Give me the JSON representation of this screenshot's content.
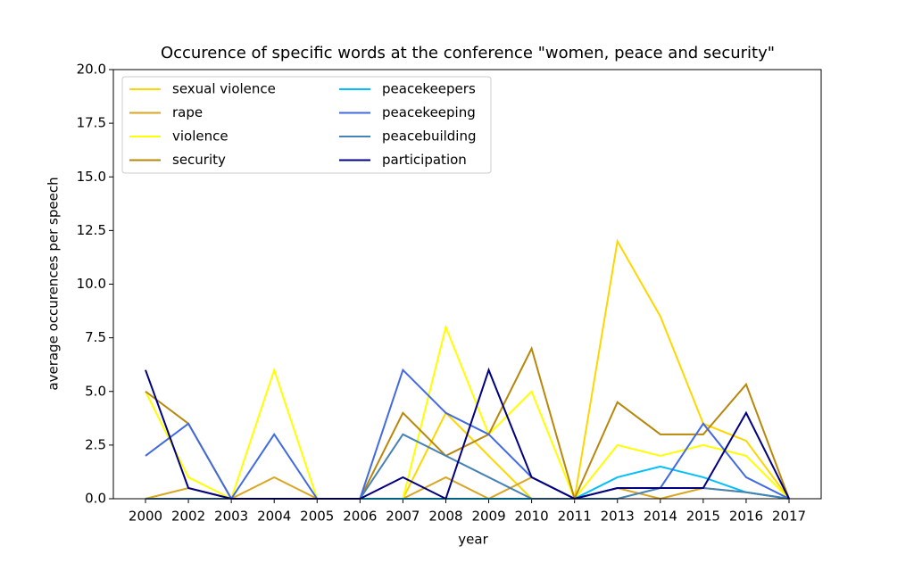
{
  "chart_data": {
    "type": "line",
    "title": "Occurence of specific words at the conference \"women, peace and security\"",
    "xlabel": "year",
    "ylabel": "average occurences per speech",
    "categories": [
      "2000",
      "2002",
      "2003",
      "2004",
      "2005",
      "2006",
      "2007",
      "2008",
      "2009",
      "2010",
      "2011",
      "2013",
      "2014",
      "2015",
      "2016",
      "2017"
    ],
    "ylim": [
      0,
      20
    ],
    "yticks": [
      {
        "value": 0,
        "label": "0.0"
      },
      2.5,
      {
        "value": 5,
        "label": "5.0"
      },
      7.5,
      {
        "value": 10,
        "label": "10.0"
      },
      12.5,
      {
        "value": 15,
        "label": "15.0"
      },
      17.5,
      {
        "value": 20,
        "label": "20.0"
      }
    ],
    "legend": "upper left",
    "series": [
      {
        "name": "sexual violence",
        "color": "#ffd700",
        "values": [
          0,
          0,
          0,
          0,
          0,
          0,
          0,
          4,
          2,
          0,
          0,
          12,
          8.5,
          3.5,
          2.7,
          0
        ]
      },
      {
        "name": "rape",
        "color": "#daa520",
        "values": [
          0,
          0.5,
          0,
          1,
          0,
          0,
          0,
          1,
          0,
          1,
          0,
          0.5,
          0,
          0.5,
          0.3,
          0
        ]
      },
      {
        "name": "violence",
        "color": "#ffff00",
        "values": [
          5,
          1,
          0,
          6,
          0,
          0,
          0,
          8,
          3,
          5,
          0,
          2.5,
          2,
          2.5,
          2,
          0
        ]
      },
      {
        "name": "security",
        "color": "#b8860b",
        "values": [
          5,
          3.5,
          0,
          0,
          0,
          0,
          4,
          2,
          3,
          7,
          0,
          4.5,
          3,
          3,
          5.33,
          0
        ]
      },
      {
        "name": "peacekeepers",
        "color": "#00bfff",
        "values": [
          0,
          0,
          0,
          0,
          0,
          0,
          0,
          0,
          0,
          0,
          0,
          1,
          1.5,
          1,
          0.3,
          0
        ]
      },
      {
        "name": "peacekeeping",
        "color": "#4169e1",
        "values": [
          2,
          3.5,
          0,
          3,
          0,
          0,
          6,
          4,
          3,
          1,
          0,
          0.5,
          0.5,
          3.5,
          1,
          0
        ]
      },
      {
        "name": "peacebuilding",
        "color": "#4682b4",
        "values": [
          0,
          0,
          0,
          0,
          0,
          0,
          3,
          2,
          1,
          0,
          0,
          0,
          0.5,
          0.5,
          0.3,
          0
        ]
      },
      {
        "name": "participation",
        "color": "#000080",
        "values": [
          6,
          0.5,
          0,
          0,
          0,
          0,
          1,
          0,
          6,
          1,
          0,
          0.5,
          0.5,
          0.5,
          4,
          0
        ]
      }
    ]
  }
}
